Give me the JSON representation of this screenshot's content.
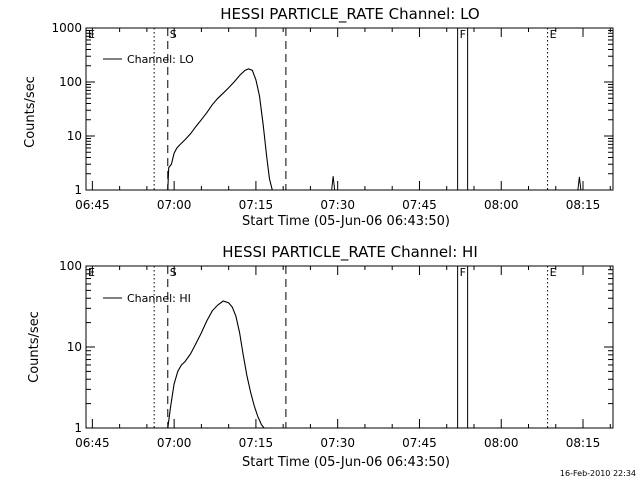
{
  "chart_data": [
    {
      "type": "line",
      "title": "HESSI PARTICLE_RATE Channel: LO",
      "xlabel": "Start Time (05-Jun-06 06:43:50)",
      "ylabel": "Counts/sec",
      "y_scale": "log",
      "ylim": [
        1,
        1000
      ],
      "yticks": [
        "1",
        "10",
        "100",
        "1000"
      ],
      "xlim": [
        "06:43:50",
        "08:20:30"
      ],
      "xticks": [
        "06:45",
        "07:00",
        "07:15",
        "07:30",
        "07:45",
        "08:00",
        "08:15"
      ],
      "legend": {
        "entries": [
          "Channel: LO"
        ],
        "placement": "top-left"
      },
      "series": [
        {
          "name": "Channel: LO",
          "x": [
            "06:58:50",
            "06:59:00",
            "06:59:30",
            "07:00:00",
            "07:00:30",
            "07:01:00",
            "07:02:00",
            "07:03:00",
            "07:04:00",
            "07:05:00",
            "07:06:00",
            "07:07:00",
            "07:08:00",
            "07:09:00",
            "07:10:00",
            "07:11:00",
            "07:12:00",
            "07:13:00",
            "07:13:40",
            "07:14:20",
            "07:15:00",
            "07:15:40",
            "07:16:20",
            "07:17:00",
            "07:17:30",
            "07:18:00"
          ],
          "y": [
            1.0,
            2.6,
            3.0,
            4.8,
            6.0,
            6.8,
            8.5,
            11,
            15,
            20,
            27,
            38,
            50,
            62,
            78,
            100,
            132,
            165,
            175,
            165,
            110,
            55,
            16,
            4,
            1.6,
            1.0
          ]
        }
      ],
      "spikes": [
        {
          "x": "07:29:10",
          "peak": 1.8
        },
        {
          "x": "08:14:20",
          "peak": 1.75
        }
      ],
      "markers": [
        {
          "label": "",
          "x": "06:56:20",
          "style": "dotted"
        },
        {
          "label": "S",
          "x": "06:58:50",
          "style": "dashed"
        },
        {
          "label": "",
          "x": "07:20:30",
          "style": "dashed"
        },
        {
          "label": "F",
          "x": "07:52:00",
          "style": "solid"
        },
        {
          "label": "",
          "x": "07:53:50",
          "style": "solid"
        },
        {
          "label": "E",
          "x": "08:08:30",
          "style": "dotted"
        },
        {
          "label": "",
          "x": "08:20:30",
          "style": "dotted"
        }
      ],
      "corner_label": "E",
      "grid": false
    },
    {
      "type": "line",
      "title": "HESSI PARTICLE_RATE Channel: HI",
      "xlabel": "Start Time (05-Jun-06 06:43:50)",
      "ylabel": "Counts/sec",
      "y_scale": "log",
      "ylim": [
        1,
        100
      ],
      "yticks": [
        "1",
        "10",
        "100"
      ],
      "xlim": [
        "06:43:50",
        "08:20:30"
      ],
      "xticks": [
        "06:45",
        "07:00",
        "07:15",
        "07:30",
        "07:45",
        "08:00",
        "08:15"
      ],
      "legend": {
        "entries": [
          "Channel: HI"
        ],
        "placement": "top-left"
      },
      "series": [
        {
          "name": "Channel: HI",
          "x": [
            "06:58:50",
            "06:59:20",
            "07:00:00",
            "07:00:40",
            "07:01:20",
            "07:02:00",
            "07:03:00",
            "07:04:00",
            "07:05:00",
            "07:06:00",
            "07:07:00",
            "07:08:00",
            "07:09:00",
            "07:10:00",
            "07:10:40",
            "07:11:20",
            "07:12:00",
            "07:12:40",
            "07:13:20",
            "07:14:00",
            "07:14:40",
            "07:15:20",
            "07:16:00",
            "07:16:30"
          ],
          "y": [
            1.0,
            1.8,
            3.5,
            5.0,
            6.0,
            6.6,
            8.2,
            11,
            15,
            21,
            28,
            33,
            37,
            35,
            31,
            24,
            15,
            8,
            4.5,
            2.8,
            1.9,
            1.4,
            1.1,
            1.0
          ]
        }
      ],
      "markers": [
        {
          "label": "",
          "x": "06:56:20",
          "style": "dotted"
        },
        {
          "label": "S",
          "x": "06:58:50",
          "style": "dashed"
        },
        {
          "label": "",
          "x": "07:20:30",
          "style": "dashed"
        },
        {
          "label": "F",
          "x": "07:52:00",
          "style": "solid"
        },
        {
          "label": "",
          "x": "07:53:50",
          "style": "solid"
        },
        {
          "label": "E",
          "x": "08:08:30",
          "style": "dotted"
        },
        {
          "label": "",
          "x": "08:20:30",
          "style": "dotted"
        }
      ],
      "corner_label": "E",
      "grid": false
    }
  ],
  "footer": {
    "timestamp": "16-Feb-2010 22:34"
  }
}
